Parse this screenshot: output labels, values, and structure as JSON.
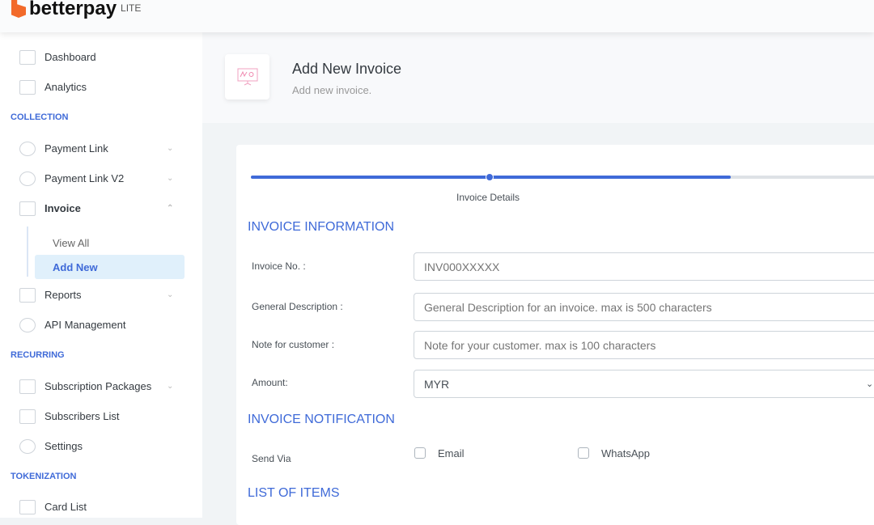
{
  "brand": {
    "name": "betterpay",
    "tag": "LITE",
    "color": "#f26a2a"
  },
  "accent": "#3f6ad8",
  "sidebar": {
    "items_top": [
      {
        "label": "Dashboard",
        "icon": "presentation-icon"
      },
      {
        "label": "Analytics",
        "icon": "presentation-icon"
      }
    ],
    "collection_heading": "COLLECTION",
    "collection": [
      {
        "label": "Payment Link",
        "icon": "link-icon"
      },
      {
        "label": "Payment Link V2",
        "icon": "link-icon"
      },
      {
        "label": "Invoice",
        "icon": "clipboard-icon"
      }
    ],
    "invoice_sub": [
      "View All",
      "Add New"
    ],
    "collection2": [
      {
        "label": "Reports",
        "icon": "folder-icon"
      },
      {
        "label": "API Management",
        "icon": "gear-icon"
      }
    ],
    "recurring_heading": "RECURRING",
    "recurring": [
      {
        "label": "Subscription Packages",
        "icon": "gift-icon"
      },
      {
        "label": "Subscribers List",
        "icon": "clipboard-icon"
      },
      {
        "label": "Settings",
        "icon": "gear-icon"
      }
    ],
    "tokenization_heading": "TOKENIZATION",
    "tokenization": [
      {
        "label": "Card List",
        "icon": "clipboard-icon"
      }
    ]
  },
  "page": {
    "title": "Add New Invoice",
    "subtitle": "Add new invoice."
  },
  "wizard": {
    "step_label": "Invoice Details",
    "progress_percent": 76
  },
  "form": {
    "section1": "INVOICE INFORMATION",
    "invoice_no": {
      "label": "Invoice No. :",
      "placeholder": "INV000XXXXX"
    },
    "description": {
      "label": "General Description :",
      "placeholder": "General Description for an invoice. max is 500 characters"
    },
    "note": {
      "label": "Note for customer :",
      "placeholder": "Note for your customer. max is 100 characters"
    },
    "amount": {
      "label": "Amount:",
      "currency": "MYR"
    },
    "section2": "INVOICE NOTIFICATION",
    "send_via": {
      "label": "Send Via",
      "email": "Email",
      "whatsapp": "WhatsApp"
    },
    "section3": "LIST OF ITEMS"
  }
}
